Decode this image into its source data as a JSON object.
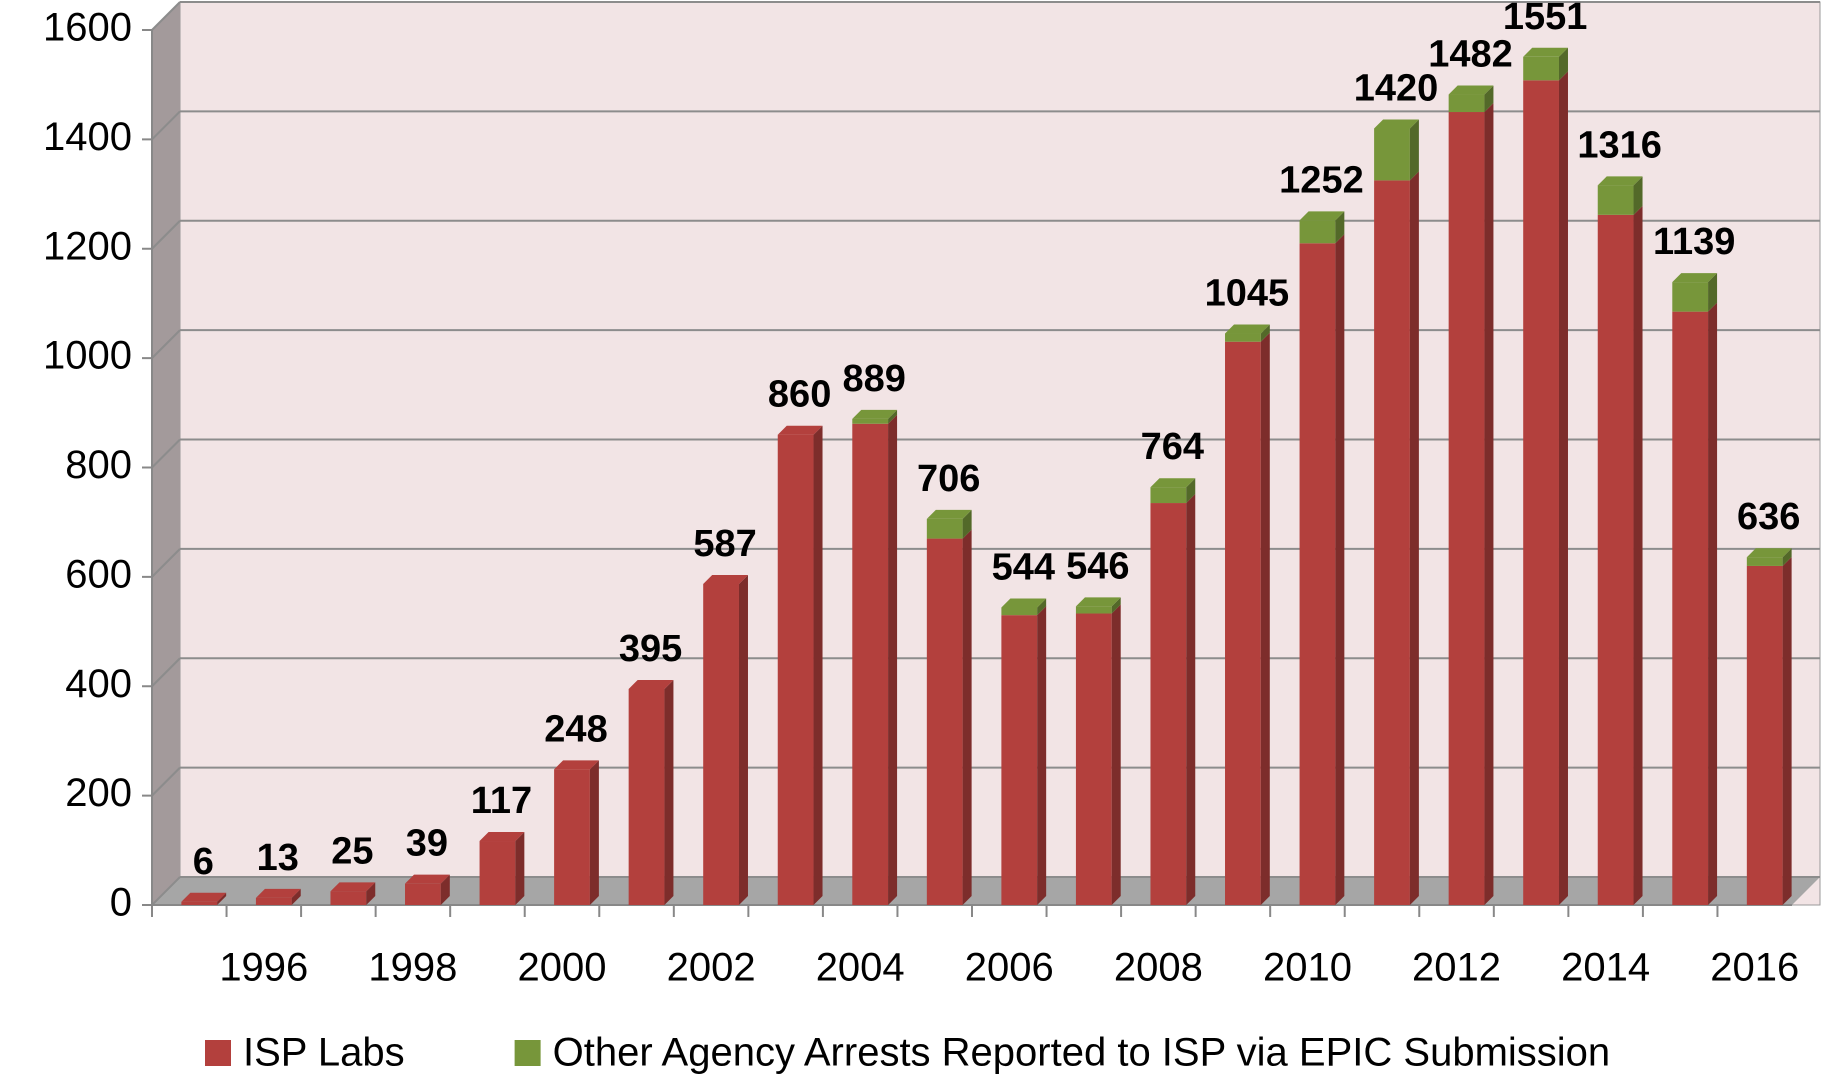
{
  "chart_data": {
    "type": "stacked-bar-3d",
    "categories": [
      null,
      "1996",
      null,
      "1998",
      null,
      "2000",
      null,
      "2002",
      null,
      "2004",
      null,
      "2006",
      null,
      "2008",
      null,
      "2010",
      null,
      "2012",
      null,
      "2014",
      null,
      "2016"
    ],
    "series": [
      {
        "name": "ISP Labs",
        "color": "#b3403d",
        "values": [
          6,
          13,
          25,
          39,
          117,
          248,
          395,
          587,
          860,
          880,
          670,
          530,
          533,
          735,
          1030,
          1210,
          1325,
          1450,
          1508,
          1262,
          1085,
          620
        ]
      },
      {
        "name": "Other Agency Arrests Reported to ISP via EPIC Submission",
        "color": "#77963a",
        "values": [
          0,
          0,
          0,
          0,
          0,
          0,
          0,
          0,
          0,
          9,
          36,
          14,
          13,
          29,
          15,
          42,
          95,
          32,
          43,
          54,
          54,
          16
        ]
      }
    ],
    "totals": [
      6,
      13,
      25,
      39,
      117,
      248,
      395,
      587,
      860,
      889,
      706,
      544,
      546,
      764,
      1045,
      1252,
      1420,
      1482,
      1551,
      1316,
      1139,
      636
    ],
    "ylim": [
      0,
      1600
    ],
    "yticks": [
      0,
      200,
      400,
      600,
      800,
      1000,
      1200,
      1400,
      1600
    ],
    "grid": true
  }
}
